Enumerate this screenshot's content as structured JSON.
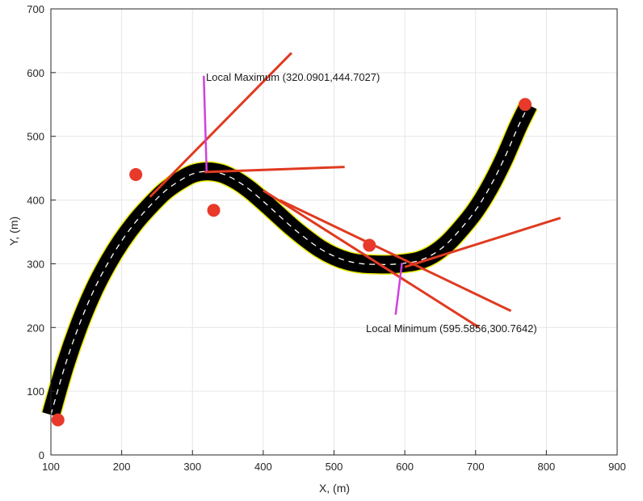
{
  "chart_data": {
    "type": "line",
    "xlabel": "X, (m)",
    "ylabel": "Y, (m)",
    "xlim": [
      100,
      900
    ],
    "ylim": [
      0,
      700
    ],
    "xticks": [
      100,
      200,
      300,
      400,
      500,
      600,
      700,
      800,
      900
    ],
    "yticks": [
      0,
      100,
      200,
      300,
      400,
      500,
      600,
      700
    ],
    "grid": true,
    "colors": {
      "road": "#000000",
      "road_edge": "#e8e800",
      "centerline": "#ffffff",
      "tangent": "#e03a20",
      "normal": "#d040e0",
      "marker": "#e8392a",
      "axes": "#262626",
      "grid": "#e6e6e6"
    },
    "road": {
      "x": [
        100,
        120,
        140,
        160,
        180,
        200,
        220,
        240,
        260,
        280,
        300,
        320,
        340,
        360,
        380,
        400,
        420,
        440,
        460,
        480,
        500,
        520,
        540,
        560,
        580,
        600,
        620,
        640,
        660,
        680,
        700,
        720,
        740,
        760,
        775
      ],
      "y": [
        63,
        140,
        204,
        257,
        300,
        336,
        366,
        391,
        413,
        429,
        441,
        445,
        442,
        432,
        417,
        398,
        378,
        358,
        340,
        324,
        312,
        304,
        300,
        299,
        299,
        301,
        305,
        315,
        332,
        356,
        384,
        420,
        464,
        515,
        549
      ]
    },
    "waypoints": [
      {
        "x": 110,
        "y": 55
      },
      {
        "x": 220,
        "y": 440
      },
      {
        "x": 330,
        "y": 384
      },
      {
        "x": 550,
        "y": 329
      },
      {
        "x": 770,
        "y": 550
      }
    ],
    "tangent_lines": [
      {
        "x1": 240,
        "y1": 405,
        "x2": 440,
        "y2": 631
      },
      {
        "x1": 317,
        "y1": 444,
        "x2": 515,
        "y2": 452
      },
      {
        "x1": 400,
        "y1": 415,
        "x2": 705,
        "y2": 200
      },
      {
        "x1": 423,
        "y1": 400,
        "x2": 750,
        "y2": 226
      },
      {
        "x1": 600,
        "y1": 295,
        "x2": 820,
        "y2": 372
      }
    ],
    "normal_lines": [
      {
        "x1": 316,
        "y1": 595,
        "x2": 320,
        "y2": 445
      },
      {
        "x1": 587,
        "y1": 220,
        "x2": 596,
        "y2": 301
      }
    ],
    "annotations": [
      {
        "text": "Local Maximum (320.0901,444.7027)",
        "x": 320.0901,
        "y": 444.7027
      },
      {
        "text": "Local Minimum (595.5856,300.7642)",
        "x": 595.5856,
        "y": 300.7642
      }
    ]
  }
}
